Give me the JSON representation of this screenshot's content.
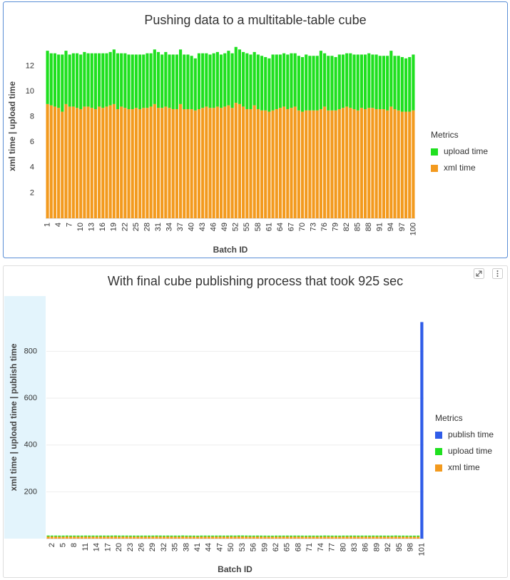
{
  "chart_data": [
    {
      "type": "bar",
      "stacked": true,
      "title": "Pushing data to a multitable-table cube",
      "x_label": "Batch ID",
      "y_label": "xml time | upload time",
      "legend_title": "Metrics",
      "legend": "right",
      "grid": false,
      "categories": [
        "1",
        null,
        null,
        "4",
        null,
        null,
        "7",
        null,
        null,
        "10",
        null,
        null,
        "13",
        null,
        null,
        "16",
        null,
        null,
        "19",
        null,
        null,
        "22",
        null,
        null,
        "25",
        null,
        null,
        "28",
        null,
        null,
        "31",
        null,
        null,
        "34",
        null,
        null,
        "37",
        null,
        null,
        "40",
        null,
        null,
        "43",
        null,
        null,
        "46",
        null,
        null,
        "49",
        null,
        null,
        "52",
        null,
        null,
        "55",
        null,
        null,
        "58",
        null,
        null,
        "61",
        null,
        null,
        "64",
        null,
        null,
        "67",
        null,
        null,
        "70",
        null,
        null,
        "73",
        null,
        null,
        "76",
        null,
        null,
        "79",
        null,
        null,
        "82",
        null,
        null,
        "85",
        null,
        null,
        "88",
        null,
        null,
        "91",
        null,
        null,
        "94",
        null,
        null,
        "97",
        null,
        null,
        "100"
      ],
      "ylim": [
        0,
        14.5
      ],
      "yticks": [
        2,
        4,
        6,
        8,
        10,
        12
      ],
      "series": [
        {
          "name": "xml time",
          "color": "#f39a1e",
          "values": [
            9.0,
            8.9,
            8.8,
            8.7,
            8.4,
            9.0,
            8.8,
            8.8,
            8.7,
            8.6,
            8.8,
            8.8,
            8.7,
            8.6,
            8.8,
            8.7,
            8.8,
            8.9,
            9.0,
            8.6,
            8.8,
            8.7,
            8.6,
            8.6,
            8.7,
            8.6,
            8.7,
            8.7,
            8.8,
            9.0,
            8.7,
            8.7,
            8.8,
            8.7,
            8.6,
            8.6,
            9.0,
            8.6,
            8.6,
            8.6,
            8.5,
            8.6,
            8.7,
            8.8,
            8.7,
            8.7,
            8.8,
            8.7,
            8.8,
            8.9,
            8.7,
            9.1,
            9.0,
            8.8,
            8.6,
            8.6,
            8.9,
            8.6,
            8.5,
            8.5,
            8.4,
            8.5,
            8.6,
            8.7,
            8.8,
            8.6,
            8.7,
            8.8,
            8.5,
            8.4,
            8.5,
            8.5,
            8.5,
            8.5,
            8.6,
            8.8,
            8.5,
            8.5,
            8.5,
            8.6,
            8.7,
            8.8,
            8.7,
            8.6,
            8.5,
            8.7,
            8.6,
            8.7,
            8.7,
            8.6,
            8.6,
            8.6,
            8.5,
            8.8,
            8.6,
            8.5,
            8.4,
            8.4,
            8.4,
            8.5
          ]
        },
        {
          "name": "upload time",
          "color": "#1fe01f",
          "values": [
            4.2,
            4.1,
            4.2,
            4.2,
            4.5,
            4.2,
            4.1,
            4.2,
            4.3,
            4.3,
            4.3,
            4.2,
            4.3,
            4.4,
            4.2,
            4.3,
            4.2,
            4.2,
            4.3,
            4.4,
            4.2,
            4.3,
            4.3,
            4.3,
            4.2,
            4.3,
            4.2,
            4.3,
            4.2,
            4.3,
            4.4,
            4.2,
            4.3,
            4.2,
            4.3,
            4.3,
            4.3,
            4.3,
            4.3,
            4.2,
            4.1,
            4.4,
            4.3,
            4.2,
            4.2,
            4.3,
            4.3,
            4.2,
            4.2,
            4.3,
            4.3,
            4.4,
            4.3,
            4.3,
            4.4,
            4.3,
            4.2,
            4.3,
            4.3,
            4.2,
            4.2,
            4.4,
            4.3,
            4.2,
            4.2,
            4.3,
            4.3,
            4.2,
            4.3,
            4.3,
            4.4,
            4.3,
            4.3,
            4.3,
            4.6,
            4.2,
            4.3,
            4.3,
            4.2,
            4.3,
            4.2,
            4.2,
            4.3,
            4.3,
            4.4,
            4.2,
            4.3,
            4.3,
            4.2,
            4.3,
            4.2,
            4.2,
            4.3,
            4.4,
            4.2,
            4.3,
            4.3,
            4.2,
            4.3,
            4.4
          ]
        }
      ]
    },
    {
      "type": "bar",
      "stacked": true,
      "title": "With final cube publishing process that took 925 sec",
      "x_label": "Batch ID",
      "y_label": "xml time | upload time | publish time",
      "legend_title": "Metrics",
      "legend": "right",
      "grid": true,
      "categories": [
        null,
        "2",
        null,
        null,
        "5",
        null,
        null,
        "8",
        null,
        null,
        "11",
        null,
        null,
        "14",
        null,
        null,
        "17",
        null,
        null,
        "20",
        null,
        null,
        "23",
        null,
        null,
        "26",
        null,
        null,
        "29",
        null,
        null,
        "32",
        null,
        null,
        "35",
        null,
        null,
        "38",
        null,
        null,
        "41",
        null,
        null,
        "44",
        null,
        null,
        "47",
        null,
        null,
        "50",
        null,
        null,
        "53",
        null,
        null,
        "56",
        null,
        null,
        "59",
        null,
        null,
        "62",
        null,
        null,
        "65",
        null,
        null,
        "68",
        null,
        null,
        "71",
        null,
        null,
        "74",
        null,
        null,
        "77",
        null,
        null,
        "80",
        null,
        null,
        "83",
        null,
        null,
        "86",
        null,
        null,
        "89",
        null,
        null,
        "92",
        null,
        null,
        "95",
        null,
        null,
        "98",
        null,
        null,
        "101"
      ],
      "ylim": [
        0,
        1036
      ],
      "yticks": [
        200,
        400,
        600,
        800
      ],
      "series": [
        {
          "name": "xml time",
          "color": "#f39a1e",
          "values": [
            9.0,
            8.9,
            8.8,
            8.7,
            8.4,
            9.0,
            8.8,
            8.8,
            8.7,
            8.6,
            8.8,
            8.8,
            8.7,
            8.6,
            8.8,
            8.7,
            8.8,
            8.9,
            9.0,
            8.6,
            8.8,
            8.7,
            8.6,
            8.6,
            8.7,
            8.6,
            8.7,
            8.7,
            8.8,
            9.0,
            8.7,
            8.7,
            8.8,
            8.7,
            8.6,
            8.6,
            9.0,
            8.6,
            8.6,
            8.6,
            8.5,
            8.6,
            8.7,
            8.8,
            8.7,
            8.7,
            8.8,
            8.7,
            8.8,
            8.9,
            8.7,
            9.1,
            9.0,
            8.8,
            8.6,
            8.6,
            8.9,
            8.6,
            8.5,
            8.5,
            8.4,
            8.5,
            8.6,
            8.7,
            8.8,
            8.6,
            8.7,
            8.8,
            8.5,
            8.4,
            8.5,
            8.5,
            8.5,
            8.5,
            8.6,
            8.8,
            8.5,
            8.5,
            8.5,
            8.6,
            8.7,
            8.8,
            8.7,
            8.6,
            8.5,
            8.7,
            8.6,
            8.7,
            8.7,
            8.6,
            8.6,
            8.6,
            8.5,
            8.8,
            8.6,
            8.5,
            8.4,
            8.4,
            8.4,
            8.5,
            null
          ]
        },
        {
          "name": "upload time",
          "color": "#1fe01f",
          "values": [
            4.2,
            4.1,
            4.2,
            4.2,
            4.5,
            4.2,
            4.1,
            4.2,
            4.3,
            4.3,
            4.3,
            4.2,
            4.3,
            4.4,
            4.2,
            4.3,
            4.2,
            4.2,
            4.3,
            4.4,
            4.2,
            4.3,
            4.3,
            4.3,
            4.2,
            4.3,
            4.2,
            4.3,
            4.2,
            4.3,
            4.4,
            4.2,
            4.3,
            4.2,
            4.3,
            4.3,
            4.3,
            4.3,
            4.3,
            4.2,
            4.1,
            4.4,
            4.3,
            4.2,
            4.2,
            4.3,
            4.3,
            4.2,
            4.2,
            4.3,
            4.3,
            4.4,
            4.3,
            4.3,
            4.4,
            4.3,
            4.2,
            4.3,
            4.3,
            4.2,
            4.2,
            4.4,
            4.3,
            4.2,
            4.2,
            4.3,
            4.3,
            4.2,
            4.3,
            4.3,
            4.4,
            4.3,
            4.3,
            4.3,
            4.6,
            4.2,
            4.3,
            4.3,
            4.2,
            4.3,
            4.2,
            4.2,
            4.3,
            4.3,
            4.4,
            4.2,
            4.3,
            4.3,
            4.2,
            4.3,
            4.2,
            4.2,
            4.3,
            4.4,
            4.2,
            4.3,
            4.3,
            4.2,
            4.3,
            4.4,
            null
          ]
        },
        {
          "name": "publish time",
          "color": "#2f5ce8",
          "values": [
            null,
            null,
            null,
            null,
            null,
            null,
            null,
            null,
            null,
            null,
            null,
            null,
            null,
            null,
            null,
            null,
            null,
            null,
            null,
            null,
            null,
            null,
            null,
            null,
            null,
            null,
            null,
            null,
            null,
            null,
            null,
            null,
            null,
            null,
            null,
            null,
            null,
            null,
            null,
            null,
            null,
            null,
            null,
            null,
            null,
            null,
            null,
            null,
            null,
            null,
            null,
            null,
            null,
            null,
            null,
            null,
            null,
            null,
            null,
            null,
            null,
            null,
            null,
            null,
            null,
            null,
            null,
            null,
            null,
            null,
            null,
            null,
            null,
            null,
            null,
            null,
            null,
            null,
            null,
            null,
            null,
            null,
            null,
            null,
            null,
            null,
            null,
            null,
            null,
            null,
            null,
            null,
            null,
            null,
            null,
            null,
            null,
            null,
            null,
            null,
            925
          ]
        }
      ]
    }
  ]
}
